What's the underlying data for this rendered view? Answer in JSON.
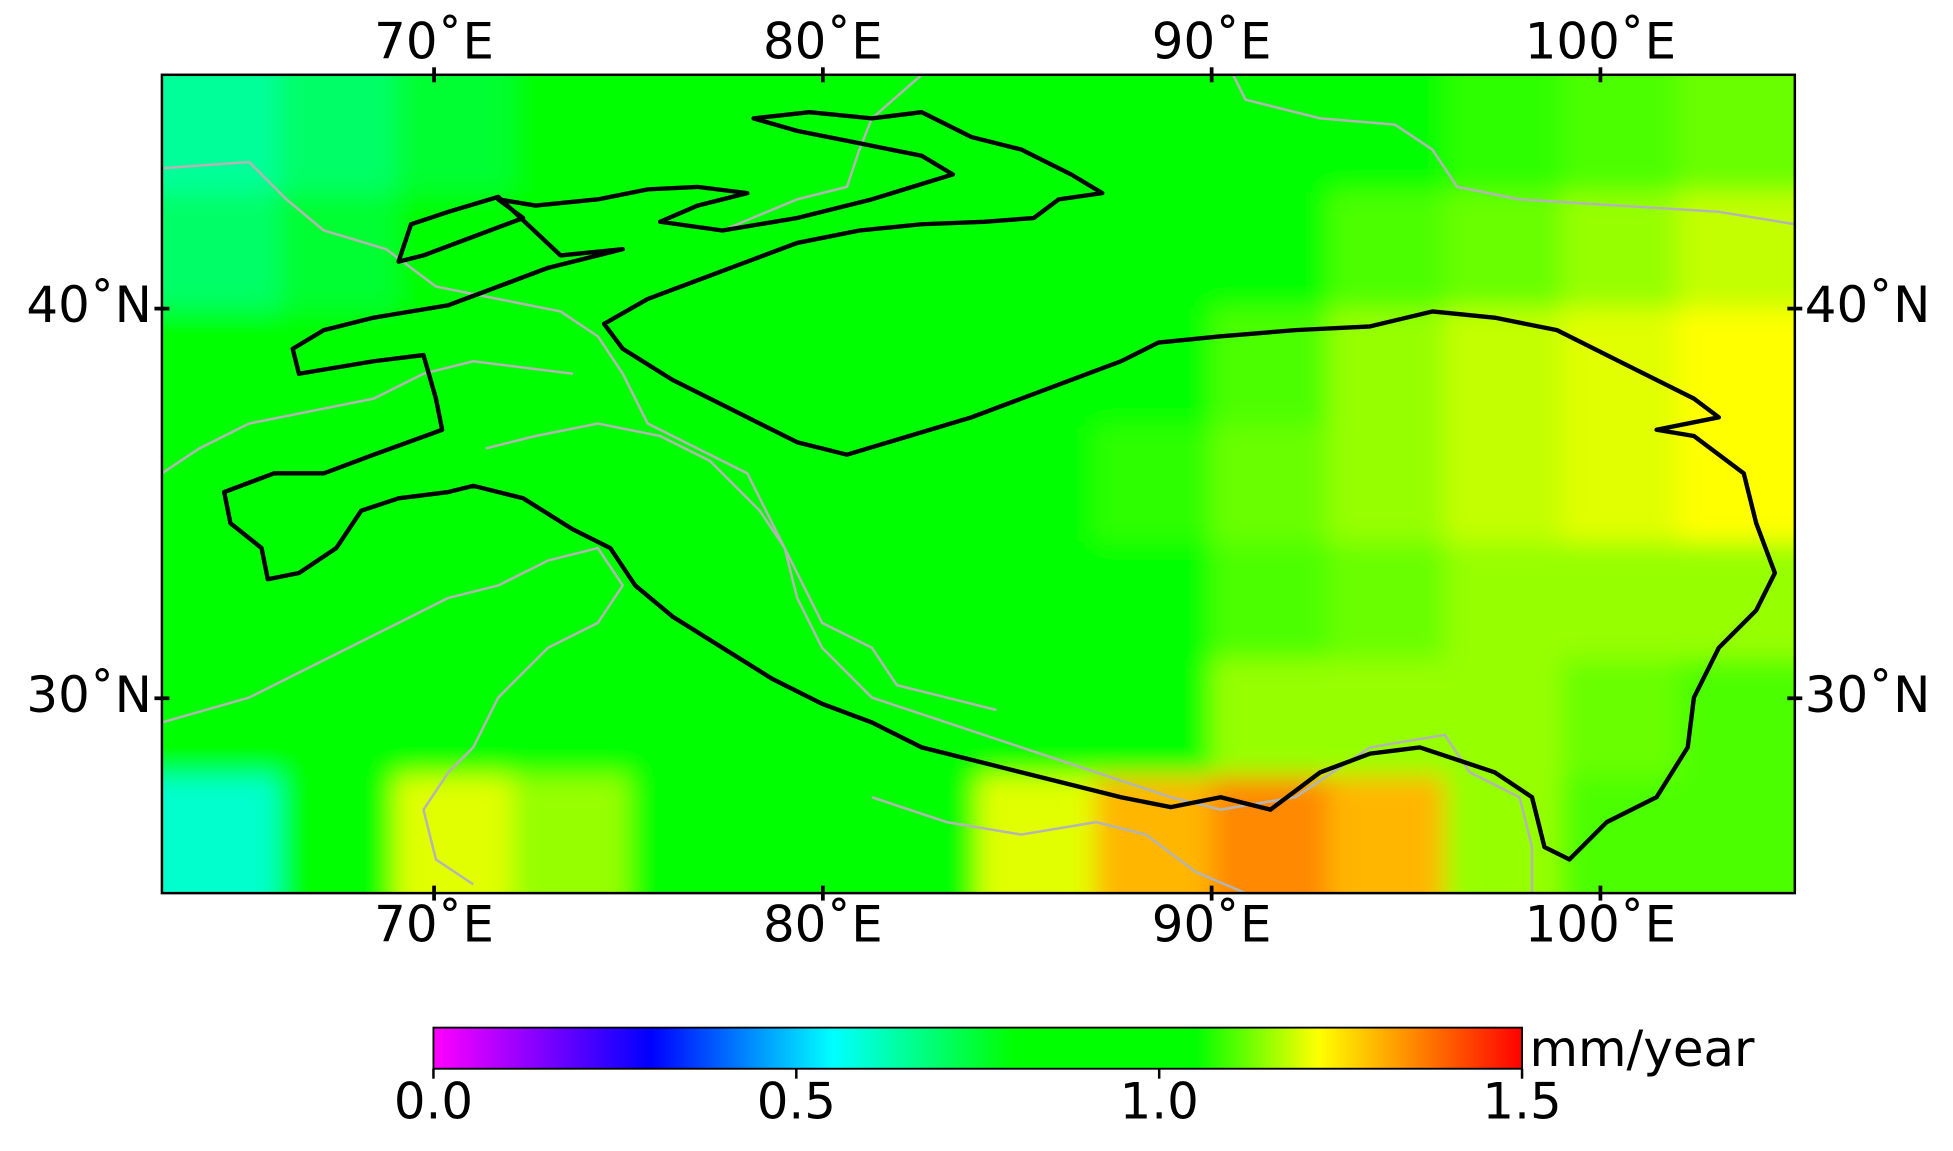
{
  "map": {
    "type": "raster",
    "xlim": [
      63,
      105
    ],
    "ylim": [
      25,
      46
    ],
    "xticks": [
      {
        "value": 70,
        "label": "70˚E"
      },
      {
        "value": 80,
        "label": "80˚E"
      },
      {
        "value": 90,
        "label": "90˚E"
      },
      {
        "value": 100,
        "label": "100˚E"
      }
    ],
    "yticks": [
      {
        "value": 30,
        "label": "30˚N"
      },
      {
        "value": 40,
        "label": "40˚N"
      }
    ],
    "field": {
      "lon": [
        64.5,
        67.5,
        70.5,
        73.5,
        76.5,
        79.5,
        82.5,
        85.5,
        88.5,
        91.5,
        94.5,
        97.5,
        100.5,
        103.5
      ],
      "lat": [
        44.5,
        41.5,
        38.5,
        35.5,
        32.5,
        29.5,
        26.5
      ],
      "values": [
        [
          0.65,
          0.7,
          0.75,
          0.8,
          0.85,
          0.9,
          0.95,
          0.95,
          1.0,
          1.0,
          1.05,
          1.08,
          1.1,
          1.12
        ],
        [
          0.7,
          0.75,
          0.8,
          0.85,
          0.9,
          0.95,
          0.95,
          1.0,
          1.0,
          1.05,
          1.1,
          1.12,
          1.15,
          1.18
        ],
        [
          0.8,
          0.85,
          0.9,
          0.9,
          0.95,
          0.95,
          1.0,
          1.0,
          1.05,
          1.1,
          1.15,
          1.18,
          1.2,
          1.22
        ],
        [
          0.85,
          0.9,
          0.92,
          0.95,
          0.95,
          1.0,
          1.0,
          1.0,
          1.08,
          1.12,
          1.15,
          1.18,
          1.2,
          1.22
        ],
        [
          0.88,
          0.9,
          0.92,
          0.95,
          0.95,
          1.0,
          1.0,
          1.0,
          1.05,
          1.1,
          1.12,
          1.15,
          1.15,
          1.15
        ],
        [
          0.95,
          1.05,
          1.05,
          1.0,
          0.95,
          0.95,
          0.95,
          1.0,
          1.05,
          1.15,
          1.15,
          1.15,
          1.12,
          1.1
        ],
        [
          0.6,
          0.95,
          1.2,
          1.15,
          1.05,
          1.0,
          1.05,
          1.2,
          1.3,
          1.35,
          1.3,
          1.15,
          1.1,
          1.1
        ]
      ]
    },
    "colorbar": {
      "label": "mm/year",
      "lim": [
        0,
        1.5
      ],
      "ticks": [
        {
          "value": 0,
          "label": "0.0"
        },
        0.5,
        {
          "value": 1,
          "label": "1.0"
        },
        1.5
      ],
      "colormap": [
        {
          "value": 0,
          "color": "#ff00ff"
        },
        {
          "value": 0.3,
          "color": "#0000ff"
        },
        {
          "value": 0.55,
          "color": "#00ffff"
        },
        {
          "value": 0.8,
          "color": "#00ff00"
        },
        {
          "value": 1.05,
          "color": "#00ff00"
        },
        {
          "value": 1.22,
          "color": "#ffff00"
        },
        {
          "value": 1.5,
          "color": "#ff0000"
        }
      ]
    }
  }
}
